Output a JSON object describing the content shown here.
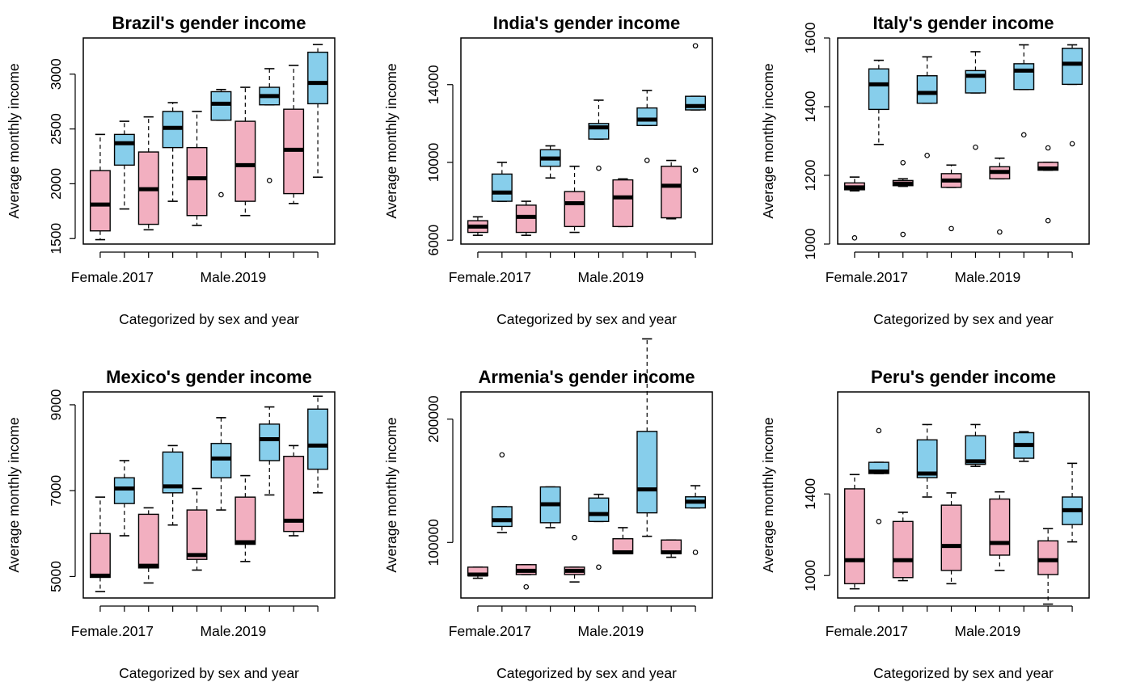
{
  "colors": {
    "female": "#F2AFC0",
    "male": "#87CEEB"
  },
  "chart_data": [
    {
      "type": "boxplot",
      "title": "Brazil's gender income",
      "xlabel": "Categorized by sex and year",
      "ylabel": "Average monthly income",
      "ylim": [
        1450,
        3330
      ],
      "yticks": [
        1500,
        2000,
        2500,
        3000
      ],
      "ytick_labels": [
        "1500",
        "2000",
        "2500",
        "3000"
      ],
      "shown_x_labels": [
        "Female.2017",
        "Male.2019"
      ],
      "boxes": [
        {
          "sex": "female",
          "lo": 1490,
          "q1": 1570,
          "med": 1810,
          "q3": 2120,
          "hi": 2450,
          "out": []
        },
        {
          "sex": "male",
          "lo": 1770,
          "q1": 2170,
          "med": 2370,
          "q3": 2450,
          "hi": 2570,
          "out": []
        },
        {
          "sex": "female",
          "lo": 1580,
          "q1": 1630,
          "med": 1950,
          "q3": 2290,
          "hi": 2610,
          "out": []
        },
        {
          "sex": "male",
          "lo": 1840,
          "q1": 2330,
          "med": 2510,
          "q3": 2660,
          "hi": 2740,
          "out": []
        },
        {
          "sex": "female",
          "lo": 1620,
          "q1": 1710,
          "med": 2050,
          "q3": 2330,
          "hi": 2660,
          "out": []
        },
        {
          "sex": "male",
          "lo": 2580,
          "q1": 2580,
          "med": 2730,
          "q3": 2840,
          "hi": 2860,
          "out": [
            1900
          ]
        },
        {
          "sex": "female",
          "lo": 1710,
          "q1": 1840,
          "med": 2170,
          "q3": 2570,
          "hi": 2880,
          "out": []
        },
        {
          "sex": "male",
          "lo": 2720,
          "q1": 2720,
          "med": 2800,
          "q3": 2880,
          "hi": 3050,
          "out": [
            2030
          ]
        },
        {
          "sex": "female",
          "lo": 1820,
          "q1": 1910,
          "med": 2310,
          "q3": 2680,
          "hi": 3080,
          "out": []
        },
        {
          "sex": "male",
          "lo": 2060,
          "q1": 2730,
          "med": 2920,
          "q3": 3200,
          "hi": 3270,
          "out": []
        }
      ]
    },
    {
      "type": "boxplot",
      "title": "India's gender income",
      "xlabel": "Categorized by sex and year",
      "ylabel": "Average monthly income",
      "ylim": [
        5800,
        16400
      ],
      "yticks": [
        6000,
        10000,
        14000
      ],
      "ytick_labels": [
        "6000",
        "10000",
        "14000"
      ],
      "shown_x_labels": [
        "Female.2017",
        "Male.2019"
      ],
      "boxes": [
        {
          "sex": "female",
          "lo": 6250,
          "q1": 6400,
          "med": 6700,
          "q3": 7000,
          "hi": 7200,
          "out": []
        },
        {
          "sex": "male",
          "lo": 8000,
          "q1": 8000,
          "med": 8450,
          "q3": 9400,
          "hi": 10000,
          "out": []
        },
        {
          "sex": "female",
          "lo": 6250,
          "q1": 6400,
          "med": 7200,
          "q3": 7800,
          "hi": 8000,
          "out": []
        },
        {
          "sex": "male",
          "lo": 9200,
          "q1": 9800,
          "med": 10200,
          "q3": 10650,
          "hi": 10850,
          "out": []
        },
        {
          "sex": "female",
          "lo": 6400,
          "q1": 6700,
          "med": 7900,
          "q3": 8500,
          "hi": 9800,
          "out": []
        },
        {
          "sex": "male",
          "lo": 11200,
          "q1": 11200,
          "med": 11800,
          "q3": 12000,
          "hi": 13200,
          "out": [
            9700
          ]
        },
        {
          "sex": "female",
          "lo": 6700,
          "q1": 6700,
          "med": 8200,
          "q3": 9100,
          "hi": 9150,
          "out": []
        },
        {
          "sex": "male",
          "lo": 11900,
          "q1": 11900,
          "med": 12200,
          "q3": 12800,
          "hi": 13700,
          "out": [
            10100
          ]
        },
        {
          "sex": "female",
          "lo": 7100,
          "q1": 7150,
          "med": 8800,
          "q3": 9800,
          "hi": 10100,
          "out": []
        },
        {
          "sex": "male",
          "lo": 12700,
          "q1": 12700,
          "med": 12900,
          "q3": 13400,
          "hi": 13400,
          "out": [
            9600,
            16000
          ]
        }
      ]
    },
    {
      "type": "boxplot",
      "title": "Italy's gender income",
      "xlabel": "Categorized by sex and year",
      "ylabel": "Average monthly income",
      "ylim": [
        1000,
        1600
      ],
      "yticks": [
        1000,
        1200,
        1400,
        1600
      ],
      "ytick_labels": [
        "1000",
        "1200",
        "1400",
        "1600"
      ],
      "shown_x_labels": [
        "Female.2017",
        "Male.2019"
      ],
      "boxes": [
        {
          "sex": "female",
          "lo": 1155,
          "q1": 1158,
          "med": 1165,
          "q3": 1178,
          "hi": 1195,
          "out": [
            1018
          ]
        },
        {
          "sex": "male",
          "lo": 1290,
          "q1": 1392,
          "med": 1465,
          "q3": 1510,
          "hi": 1535,
          "out": []
        },
        {
          "sex": "female",
          "lo": 1168,
          "q1": 1170,
          "med": 1176,
          "q3": 1185,
          "hi": 1190,
          "out": [
            1028,
            1237
          ]
        },
        {
          "sex": "male",
          "lo": 1410,
          "q1": 1410,
          "med": 1440,
          "q3": 1490,
          "hi": 1545,
          "out": [
            1258
          ]
        },
        {
          "sex": "female",
          "lo": 1165,
          "q1": 1165,
          "med": 1185,
          "q3": 1205,
          "hi": 1230,
          "out": [
            1045
          ]
        },
        {
          "sex": "male",
          "lo": 1440,
          "q1": 1440,
          "med": 1490,
          "q3": 1505,
          "hi": 1560,
          "out": [
            1282
          ]
        },
        {
          "sex": "female",
          "lo": 1190,
          "q1": 1190,
          "med": 1210,
          "q3": 1225,
          "hi": 1250,
          "out": [
            1035
          ]
        },
        {
          "sex": "male",
          "lo": 1450,
          "q1": 1450,
          "med": 1505,
          "q3": 1525,
          "hi": 1580,
          "out": [
            1318
          ]
        },
        {
          "sex": "female",
          "lo": 1215,
          "q1": 1215,
          "med": 1220,
          "q3": 1238,
          "hi": 1238,
          "out": [
            1068,
            1280
          ]
        },
        {
          "sex": "male",
          "lo": 1465,
          "q1": 1465,
          "med": 1525,
          "q3": 1570,
          "hi": 1580,
          "out": [
            1292
          ]
        }
      ]
    },
    {
      "type": "boxplot",
      "title": "Mexico's gender income",
      "xlabel": "Categorized by sex and year",
      "ylabel": "Average monthly income",
      "ylim": [
        4500,
        9300
      ],
      "yticks": [
        5000,
        7000,
        9000
      ],
      "ytick_labels": [
        "5000",
        "7000",
        "9000"
      ],
      "shown_x_labels": [
        "Female.2017",
        "Male.2019"
      ],
      "boxes": [
        {
          "sex": "female",
          "lo": 4650,
          "q1": 4980,
          "med": 5020,
          "q3": 6000,
          "hi": 6850,
          "out": []
        },
        {
          "sex": "male",
          "lo": 5950,
          "q1": 6700,
          "med": 7050,
          "q3": 7300,
          "hi": 7700,
          "out": []
        },
        {
          "sex": "female",
          "lo": 4850,
          "q1": 5200,
          "med": 5250,
          "q3": 6450,
          "hi": 6600,
          "out": []
        },
        {
          "sex": "male",
          "lo": 6200,
          "q1": 6950,
          "med": 7100,
          "q3": 7900,
          "hi": 8050,
          "out": []
        },
        {
          "sex": "female",
          "lo": 5150,
          "q1": 5400,
          "med": 5500,
          "q3": 6550,
          "hi": 7050,
          "out": []
        },
        {
          "sex": "male",
          "lo": 6550,
          "q1": 7300,
          "med": 7750,
          "q3": 8100,
          "hi": 8700,
          "out": []
        },
        {
          "sex": "female",
          "lo": 5350,
          "q1": 5750,
          "med": 5800,
          "q3": 6850,
          "hi": 7350,
          "out": []
        },
        {
          "sex": "male",
          "lo": 6900,
          "q1": 7700,
          "med": 8200,
          "q3": 8550,
          "hi": 8950,
          "out": []
        },
        {
          "sex": "female",
          "lo": 5950,
          "q1": 6050,
          "med": 6300,
          "q3": 7800,
          "hi": 8050,
          "out": []
        },
        {
          "sex": "male",
          "lo": 6950,
          "q1": 7500,
          "med": 8050,
          "q3": 8900,
          "hi": 9200,
          "out": []
        }
      ]
    },
    {
      "type": "boxplot",
      "title": "Armenia's gender income",
      "xlabel": "Categorized by sex and year",
      "ylabel": "Average monthly income",
      "ylim": [
        55000,
        222000
      ],
      "yticks": [
        100000,
        200000
      ],
      "ytick_labels": [
        "100000",
        "200000"
      ],
      "shown_x_labels": [
        "Female.2017",
        "Male.2019"
      ],
      "boxes": [
        {
          "sex": "female",
          "lo": 71000,
          "q1": 73000,
          "med": 74000,
          "q3": 80000,
          "hi": 80000,
          "out": []
        },
        {
          "sex": "male",
          "lo": 108000,
          "q1": 113000,
          "med": 118000,
          "q3": 129000,
          "hi": 129000,
          "out": [
            171000
          ]
        },
        {
          "sex": "female",
          "lo": 74000,
          "q1": 74000,
          "med": 77000,
          "q3": 82000,
          "hi": 82000,
          "out": [
            64000
          ]
        },
        {
          "sex": "male",
          "lo": 112000,
          "q1": 116000,
          "med": 131000,
          "q3": 145000,
          "hi": 145000,
          "out": []
        },
        {
          "sex": "female",
          "lo": 68000,
          "q1": 74000,
          "med": 77000,
          "q3": 80000,
          "hi": 80000,
          "out": [
            104000
          ]
        },
        {
          "sex": "male",
          "lo": 117000,
          "q1": 117000,
          "med": 123000,
          "q3": 136000,
          "hi": 139000,
          "out": [
            80000
          ]
        },
        {
          "sex": "female",
          "lo": 91000,
          "q1": 91000,
          "med": 92000,
          "q3": 103000,
          "hi": 112000,
          "out": []
        },
        {
          "sex": "male",
          "lo": 105000,
          "q1": 124000,
          "med": 143000,
          "q3": 190000,
          "hi": 265000,
          "out": []
        },
        {
          "sex": "female",
          "lo": 88000,
          "q1": 91000,
          "med": 92000,
          "q3": 102000,
          "hi": 102000,
          "out": []
        },
        {
          "sex": "male",
          "lo": 128000,
          "q1": 128000,
          "med": 133000,
          "q3": 137000,
          "hi": 146000,
          "out": [
            92000
          ]
        }
      ]
    },
    {
      "type": "boxplot",
      "title": "Peru's gender income",
      "xlabel": "Categorized by sex and year",
      "ylabel": "Average monthly income",
      "ylim": [
        890,
        1900
      ],
      "yticks": [
        1000,
        1400
      ],
      "ytick_labels": [
        "1000",
        "1400"
      ],
      "shown_x_labels": [
        "Female.2017",
        "Male.2019"
      ],
      "boxes": [
        {
          "sex": "female",
          "lo": 935,
          "q1": 960,
          "med": 1075,
          "q3": 1425,
          "hi": 1495,
          "out": []
        },
        {
          "sex": "male",
          "lo": 1500,
          "q1": 1500,
          "med": 1510,
          "q3": 1555,
          "hi": 1555,
          "out": [
            1265,
            1710
          ]
        },
        {
          "sex": "female",
          "lo": 975,
          "q1": 990,
          "med": 1075,
          "q3": 1265,
          "hi": 1310,
          "out": []
        },
        {
          "sex": "male",
          "lo": 1385,
          "q1": 1480,
          "med": 1500,
          "q3": 1665,
          "hi": 1740,
          "out": []
        },
        {
          "sex": "female",
          "lo": 960,
          "q1": 1025,
          "med": 1145,
          "q3": 1345,
          "hi": 1405,
          "out": []
        },
        {
          "sex": "male",
          "lo": 1535,
          "q1": 1545,
          "med": 1560,
          "q3": 1685,
          "hi": 1740,
          "out": []
        },
        {
          "sex": "female",
          "lo": 1025,
          "q1": 1100,
          "med": 1160,
          "q3": 1375,
          "hi": 1410,
          "out": []
        },
        {
          "sex": "male",
          "lo": 1560,
          "q1": 1575,
          "med": 1640,
          "q3": 1700,
          "hi": 1705,
          "out": []
        },
        {
          "sex": "female",
          "lo": 860,
          "q1": 1005,
          "med": 1075,
          "q3": 1170,
          "hi": 1230,
          "out": []
        },
        {
          "sex": "male",
          "lo": 1165,
          "q1": 1250,
          "med": 1320,
          "q3": 1385,
          "hi": 1550,
          "out": []
        }
      ]
    }
  ]
}
